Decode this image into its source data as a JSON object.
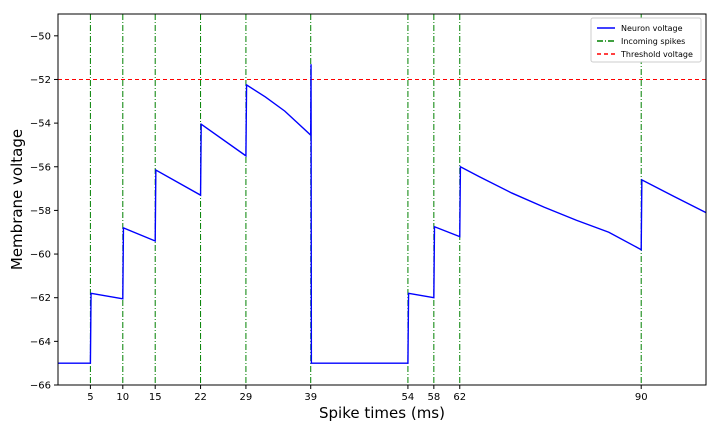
{
  "chart_data": {
    "type": "line",
    "xlabel": "Spike times (ms)",
    "ylabel": "Membrane voltage",
    "xlim": [
      0,
      100
    ],
    "ylim": [
      -66,
      -49
    ],
    "x_ticks": [
      5,
      10,
      15,
      22,
      29,
      39,
      54,
      58,
      62,
      90
    ],
    "y_ticks": [
      -66,
      -64,
      -62,
      -60,
      -58,
      -56,
      -54,
      -52,
      -50
    ],
    "grid": false,
    "legend_position": "top-right",
    "series": [
      {
        "name": "Neuron voltage",
        "color": "#0000ff",
        "style": "solid",
        "points": [
          [
            0,
            -65.0
          ],
          [
            5,
            -65.0
          ],
          [
            5.1,
            -61.8
          ],
          [
            10,
            -62.05
          ],
          [
            10.1,
            -58.8
          ],
          [
            15,
            -59.4
          ],
          [
            15.1,
            -56.15
          ],
          [
            22,
            -57.3
          ],
          [
            22.1,
            -54.05
          ],
          [
            29,
            -55.5
          ],
          [
            29.1,
            -52.25
          ],
          [
            32,
            -52.8
          ],
          [
            35,
            -53.45
          ],
          [
            39,
            -54.55
          ],
          [
            39.05,
            -51.3
          ],
          [
            39.1,
            -65.0
          ],
          [
            54,
            -65.0
          ],
          [
            54.1,
            -61.8
          ],
          [
            58,
            -62.0
          ],
          [
            58.1,
            -58.75
          ],
          [
            62,
            -59.2
          ],
          [
            62.1,
            -56.0
          ],
          [
            65,
            -56.45
          ],
          [
            70,
            -57.2
          ],
          [
            75,
            -57.85
          ],
          [
            80,
            -58.45
          ],
          [
            85,
            -59.0
          ],
          [
            90,
            -59.8
          ],
          [
            90.1,
            -56.6
          ],
          [
            95,
            -57.35
          ],
          [
            100,
            -58.1
          ]
        ]
      },
      {
        "name": "Incoming spikes",
        "color": "#008000",
        "style": "dash-dot",
        "x_positions": [
          5,
          10,
          15,
          22,
          29,
          39,
          54,
          58,
          62,
          90
        ]
      },
      {
        "name": "Threshold voltage",
        "color": "#ff0000",
        "style": "dashed",
        "y_value": -52
      }
    ]
  }
}
